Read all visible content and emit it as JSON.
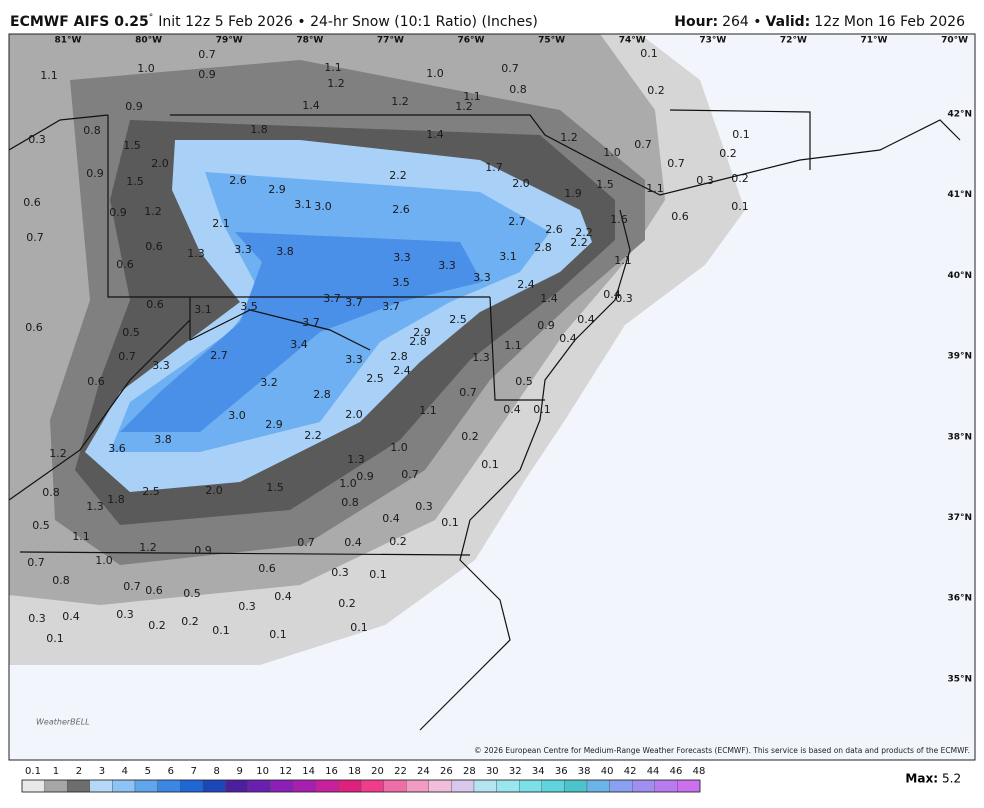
{
  "header": {
    "title": "ECMWF AIFS 0.25",
    "degree": "°",
    "subtitle": "Init 12z 5 Feb 2026 • 24-hr Snow (10:1 Ratio) (Inches)",
    "hour_label": "Hour:",
    "hour": "264 •",
    "valid_label": "Valid:",
    "valid": "12z Mon 16 Feb 2026"
  },
  "longitudes": [
    "81°W",
    "80°W",
    "79°W",
    "78°W",
    "77°W",
    "76°W",
    "75°W",
    "74°W",
    "73°W",
    "72°W",
    "71°W",
    "70°W"
  ],
  "latitudes": [
    "42°N",
    "41°N",
    "40°N",
    "39°N",
    "38°N",
    "37°N",
    "36°N",
    "35°N"
  ],
  "map_labels": [
    "1.1",
    "1.0",
    "0.7",
    "0.9",
    "0.1",
    "1.1",
    "1.2",
    "1.0",
    "0.7",
    "0.8",
    "0.2",
    "0.9",
    "1.4",
    "1.2",
    "1.2",
    "1.1",
    "0.3",
    "0.8",
    "1.5",
    "1.8",
    "1.4",
    "1.2",
    "1.0",
    "0.7",
    "0.1",
    "0.2",
    "0.7",
    "2.0",
    "0.9",
    "1.5",
    "2.6",
    "2.9",
    "2.2",
    "1.7",
    "2.0",
    "1.9",
    "1.5",
    "1.1",
    "0.3",
    "0.2",
    "0.6",
    "0.9",
    "1.2",
    "3.1",
    "3.0",
    "2.6",
    "2.7",
    "1.6",
    "0.6",
    "0.1",
    "0.7",
    "2.1",
    "0.6",
    "1.3",
    "3.3",
    "3.8",
    "2.6",
    "2.2",
    "2.2",
    "2.8",
    "0.6",
    "3.3",
    "3.3",
    "3.1",
    "3.3",
    "3.5",
    "1.1",
    "0.6",
    "3.1",
    "3.5",
    "3.7",
    "3.7",
    "3.7",
    "2.4",
    "1.4",
    "0.4",
    "0.3",
    "0.6",
    "0.5",
    "3.7",
    "2.9",
    "2.5",
    "2.8",
    "0.9",
    "0.4",
    "0.4",
    "3.4",
    "0.7",
    "2.7",
    "3.3",
    "3.3",
    "2.8",
    "2.4",
    "2.5",
    "1.3",
    "1.1",
    "0.6",
    "3.2",
    "2.8",
    "0.5",
    "0.7",
    "3.0",
    "2.0",
    "1.1",
    "0.4",
    "0.1",
    "2.9",
    "3.6",
    "3.8",
    "2.2",
    "1.0",
    "0.2",
    "1.2",
    "1.3",
    "0.9",
    "0.7",
    "0.1",
    "1.0",
    "0.8",
    "2.5",
    "2.0",
    "1.5",
    "0.8",
    "1.3",
    "1.8",
    "0.3",
    "0.1",
    "0.4",
    "0.5",
    "1.1",
    "1.2",
    "0.9",
    "0.7",
    "0.4",
    "0.2",
    "1.0",
    "0.7",
    "0.6",
    "0.3",
    "0.1",
    "0.8",
    "0.7",
    "0.6",
    "0.5",
    "0.4",
    "0.2",
    "0.3",
    "0.4",
    "0.3",
    "0.3",
    "0.2",
    "0.2",
    "0.1",
    "0.1",
    "0.1",
    "0.1"
  ],
  "copyright": "© 2026 European Centre for Medium-Range Weather Forecasts (ECMWF). This service is based on data and products of the ECMWF.",
  "logo": "WeatherBELL",
  "legend": {
    "labels": [
      "0.1",
      "1",
      "2",
      "3",
      "4",
      "5",
      "6",
      "7",
      "8",
      "9",
      "10",
      "12",
      "14",
      "16",
      "18",
      "20",
      "22",
      "24",
      "26",
      "28",
      "30",
      "32",
      "34",
      "36",
      "38",
      "40",
      "42",
      "44",
      "46",
      "48"
    ],
    "colors": [
      "#e8e8e8",
      "#a6a6a6",
      "#6e6e6e",
      "#b6d8f8",
      "#8ec4f5",
      "#5fa6ee",
      "#3b87e6",
      "#1f66d6",
      "#1a48b8",
      "#4b1f9e",
      "#6a1fb0",
      "#8b1fb8",
      "#a81fb0",
      "#c81f9e",
      "#e0207f",
      "#f03c8c",
      "#f06ea8",
      "#f29cc4",
      "#f0bedb",
      "#d8c8ec",
      "#b4e6f0",
      "#9ae6f0",
      "#7ce0e8",
      "#5fd4dc",
      "#4cc4cc",
      "#6ab4e8",
      "#8aa0f0",
      "#a08ef0",
      "#b87cf0",
      "#cc70f0"
    ]
  },
  "max_label": "Max:",
  "max": "5.2"
}
